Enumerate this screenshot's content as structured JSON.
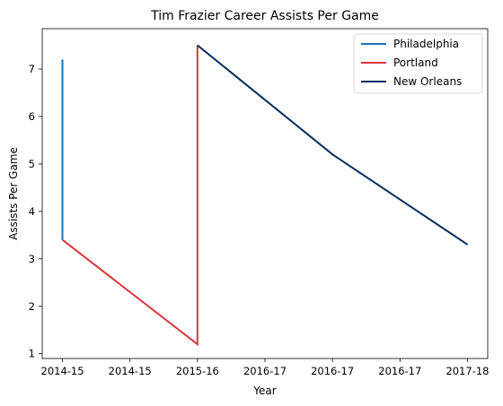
{
  "chart_data": {
    "type": "line",
    "title": "Tim Frazier Career Assists Per Game",
    "xlabel": "Year",
    "ylabel": "Assists Per Game",
    "x_tick_labels": [
      "2014-15",
      "2014-15",
      "2015-16",
      "2016-17",
      "2016-17",
      "2016-17",
      "2017-18"
    ],
    "x_tick_positions": [
      0,
      0.5,
      1,
      1.5,
      2,
      2.5,
      3
    ],
    "xlim": [
      -0.15,
      3.15
    ],
    "ylim": [
      0.9,
      7.85
    ],
    "y_ticks": [
      1,
      2,
      3,
      4,
      5,
      6,
      7
    ],
    "grid": false,
    "legend_position": "top-right",
    "series": [
      {
        "name": "Philadelphia",
        "color": "#1f6fb2",
        "x": [
          0,
          0
        ],
        "y": [
          7.2,
          3.4
        ]
      },
      {
        "name": "Portland",
        "color": "#d9363e",
        "x": [
          0,
          1,
          1
        ],
        "y": [
          3.4,
          1.2,
          7.5
        ]
      },
      {
        "name": "New Orleans",
        "color": "#002b5c",
        "x": [
          1,
          2,
          3
        ],
        "y": [
          7.5,
          5.2,
          3.3
        ]
      }
    ]
  }
}
